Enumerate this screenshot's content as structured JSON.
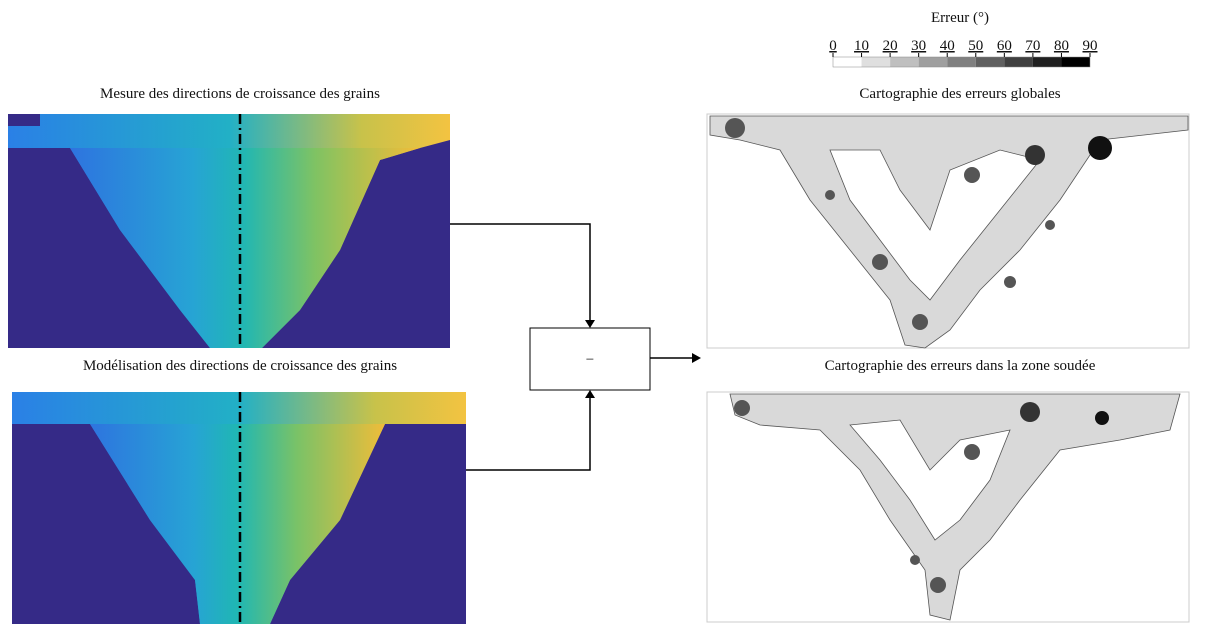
{
  "colorbar": {
    "title": "Erreur (°)",
    "ticks": [
      0,
      10,
      20,
      30,
      40,
      50,
      60,
      70,
      80,
      90
    ]
  },
  "panels": [
    {
      "title": "Mesure des directions de croissance des grains"
    },
    {
      "title": "Modélisation des directions de croissance des grains"
    },
    {
      "title": "Cartographie des erreurs globales"
    },
    {
      "title": "Cartographie des erreurs dans la zone soudée"
    }
  ],
  "operator": {
    "label": "−"
  }
}
